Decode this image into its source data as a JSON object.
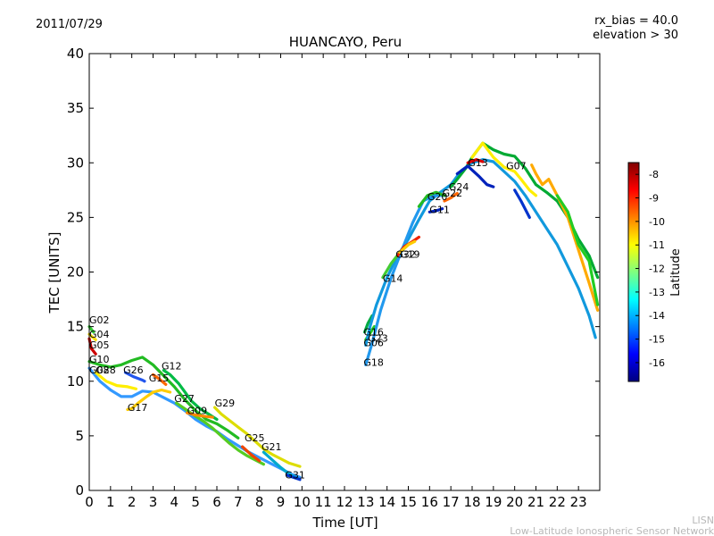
{
  "header": {
    "date": "2011/07/29",
    "rx_bias": "rx_bias = 40.0",
    "elevation": "elevation > 30"
  },
  "footer": {
    "line1": "LISN",
    "line2": "Low-Latitude Ionospheric Sensor Network"
  },
  "chart_data": {
    "type": "line",
    "title": "HUANCAYO, Peru",
    "xlabel": "Time [UT]",
    "ylabel": "TEC [UNITS]",
    "xlim": [
      0,
      24
    ],
    "ylim": [
      0,
      40
    ],
    "x_ticks": [
      "0",
      "1",
      "2",
      "3",
      "4",
      "5",
      "6",
      "7",
      "8",
      "9",
      "10",
      "11",
      "12",
      "13",
      "14",
      "15",
      "16",
      "17",
      "18",
      "19",
      "20",
      "21",
      "22",
      "23"
    ],
    "y_ticks": [
      "0",
      "5",
      "10",
      "15",
      "20",
      "25",
      "30",
      "35",
      "40"
    ],
    "colorbar": {
      "label": "Latitude",
      "range": [
        -16.8,
        -7.5
      ],
      "ticks": [
        "-8",
        "-9",
        "-10",
        "-11",
        "-12",
        "-13",
        "-14",
        "-15",
        "-16"
      ],
      "colors": [
        "#00007f",
        "#0000ff",
        "#007fff",
        "#00ffff",
        "#7fff7f",
        "#ffff00",
        "#ff7f00",
        "#ff0000",
        "#7f0000"
      ]
    },
    "series": [
      {
        "name": "G02",
        "label_xy": [
          0.0,
          15.3
        ],
        "x": [
          0.0,
          0.2
        ],
        "y": [
          15.0,
          14.5
        ],
        "color": "#33cc33"
      },
      {
        "name": "G04",
        "label_xy": [
          0.0,
          14.0
        ],
        "x": [
          0.0,
          0.3
        ],
        "y": [
          14.3,
          13.8
        ],
        "color": "#ffdd00"
      },
      {
        "name": "G05",
        "label_xy": [
          0.0,
          13.0
        ],
        "x": [
          0.0,
          0.1,
          0.3
        ],
        "y": [
          13.9,
          13.0,
          12.5
        ],
        "color": "#cc0000"
      },
      {
        "name": "G10",
        "label_xy": [
          0.0,
          11.7
        ],
        "x": [
          0.0,
          0.5,
          1.0,
          1.5,
          2.0,
          2.5,
          3.0,
          3.5,
          4.0,
          4.5,
          5.0,
          5.5,
          6.0,
          6.5,
          7.0
        ],
        "y": [
          11.8,
          11.5,
          11.3,
          11.5,
          11.9,
          12.2,
          11.5,
          10.5,
          9.5,
          8.3,
          7.3,
          6.5,
          6.1,
          5.5,
          4.8
        ],
        "color": "#22bb22"
      },
      {
        "name": "G08",
        "label_xy": [
          0.0,
          10.7
        ],
        "x": [
          0.0,
          0.5,
          1.0,
          1.5,
          2.0,
          2.5,
          3.0,
          3.5,
          4.0,
          4.5,
          5.0,
          5.5,
          6.0,
          6.5,
          7.0,
          7.5,
          8.0,
          8.5,
          9.0,
          9.5,
          9.9
        ],
        "y": [
          11.2,
          10.0,
          9.2,
          8.6,
          8.6,
          9.1,
          9.0,
          8.5,
          8.0,
          7.3,
          6.5,
          5.9,
          5.4,
          4.7,
          4.1,
          3.5,
          3.0,
          2.5,
          2.0,
          1.5,
          1.2
        ],
        "color": "#3399ff"
      },
      {
        "name": "G28",
        "label_xy": [
          0.3,
          10.7
        ],
        "x": [
          0.3,
          0.8,
          1.3,
          1.8,
          2.2
        ],
        "y": [
          10.8,
          10.0,
          9.6,
          9.5,
          9.3
        ],
        "color": "#ffee00"
      },
      {
        "name": "G26",
        "label_xy": [
          1.6,
          10.7
        ],
        "x": [
          1.7,
          2.1,
          2.5,
          2.6
        ],
        "y": [
          10.8,
          10.4,
          10.1,
          10.0
        ],
        "color": "#2255ee"
      },
      {
        "name": "G15",
        "label_xy": [
          2.8,
          10.0
        ],
        "x": [
          3.0,
          3.3,
          3.6
        ],
        "y": [
          10.6,
          10.2,
          9.7
        ],
        "color": "#ff6600"
      },
      {
        "name": "G12",
        "label_xy": [
          3.4,
          11.1
        ],
        "x": [
          3.5,
          3.8,
          4.2,
          4.5,
          4.8,
          5.2,
          5.6,
          6.0
        ],
        "y": [
          11.0,
          10.6,
          9.8,
          9.0,
          8.2,
          7.5,
          7.0,
          6.5
        ],
        "color": "#00bb44"
      },
      {
        "name": "G17",
        "label_xy": [
          1.8,
          7.3
        ],
        "x": [
          1.8,
          2.0,
          2.3,
          2.7,
          3.0,
          3.4,
          3.8
        ],
        "y": [
          7.4,
          7.5,
          8.0,
          8.6,
          9.0,
          9.2,
          9.0
        ],
        "color": "#ffcc00"
      },
      {
        "name": "G27",
        "label_xy": [
          4.0,
          8.1
        ],
        "x": [
          4.1,
          4.4,
          4.7,
          5.0,
          5.4,
          5.8,
          6.2,
          6.6,
          7.0,
          7.4,
          7.8,
          8.2
        ],
        "y": [
          8.0,
          7.6,
          7.2,
          6.8,
          6.3,
          5.7,
          5.0,
          4.3,
          3.7,
          3.2,
          2.8,
          2.4
        ],
        "color": "#55cc22"
      },
      {
        "name": "G09",
        "label_xy": [
          4.6,
          7.0
        ],
        "x": [
          4.6,
          5.0,
          5.4,
          5.8
        ],
        "y": [
          7.1,
          6.9,
          6.8,
          6.7
        ],
        "color": "#ff8800"
      },
      {
        "name": "G29",
        "label_xy": [
          5.9,
          7.7
        ],
        "x": [
          5.9,
          6.2,
          6.6,
          7.0,
          7.4,
          7.8,
          8.2,
          8.6,
          9.0,
          9.4,
          9.9
        ],
        "y": [
          7.6,
          7.0,
          6.4,
          5.8,
          5.2,
          4.5,
          3.8,
          3.3,
          2.9,
          2.5,
          2.2
        ],
        "color": "#dddd00"
      },
      {
        "name": "G25",
        "label_xy": [
          7.3,
          4.5
        ],
        "x": [
          7.2,
          7.6,
          8.0
        ],
        "y": [
          4.0,
          3.3,
          2.7
        ],
        "color": "#ee4400"
      },
      {
        "name": "G21",
        "label_xy": [
          8.1,
          3.7
        ],
        "x": [
          8.2,
          8.6,
          9.0,
          9.4,
          9.8
        ],
        "y": [
          3.5,
          2.8,
          2.1,
          1.5,
          1.1
        ],
        "color": "#00aacc"
      },
      {
        "name": "G31",
        "label_xy": [
          9.2,
          1.1
        ],
        "x": [
          9.3,
          9.6,
          9.9
        ],
        "y": [
          1.4,
          1.2,
          1.0
        ],
        "color": "#0033cc"
      },
      {
        "name": "G16",
        "label_xy": [
          12.9,
          14.2
        ],
        "x": [
          12.95,
          13.1,
          13.3
        ],
        "y": [
          14.5,
          15.3,
          16.0
        ],
        "color": "#00aa44"
      },
      {
        "name": "G23",
        "label_xy": [
          13.1,
          13.6
        ],
        "x": [
          13.0,
          13.2,
          13.4
        ],
        "y": [
          13.8,
          14.4,
          15.0
        ],
        "color": "#22cc22"
      },
      {
        "name": "G06",
        "label_xy": [
          12.9,
          13.2
        ],
        "x": [
          13.0,
          13.2,
          13.5,
          14.0,
          14.5,
          15.0,
          15.5,
          16.0,
          16.5,
          17.0,
          17.5,
          18.0,
          18.5,
          19.0,
          19.5,
          20.0,
          20.5,
          21.0,
          21.5,
          22.0,
          22.5,
          23.0,
          23.5,
          23.8
        ],
        "y": [
          13.3,
          15.0,
          17.0,
          19.5,
          21.5,
          23.0,
          24.8,
          26.5,
          27.3,
          28.0,
          29.3,
          30.0,
          30.3,
          30.1,
          29.2,
          28.3,
          27.0,
          25.5,
          24.0,
          22.5,
          20.5,
          18.5,
          16.0,
          14.0
        ],
        "color": "#1199dd"
      },
      {
        "name": "G18",
        "label_xy": [
          12.9,
          11.4
        ],
        "x": [
          13.0,
          13.3,
          13.7,
          14.2,
          14.7,
          15.2,
          15.7,
          16.2,
          16.7
        ],
        "y": [
          11.5,
          13.5,
          16.5,
          19.5,
          22.0,
          24.5,
          26.5,
          27.0,
          27.0
        ],
        "color": "#2299ee"
      },
      {
        "name": "G14",
        "label_xy": [
          13.8,
          19.1
        ],
        "x": [
          13.8,
          14.2,
          14.6,
          15.0
        ],
        "y": [
          19.5,
          20.8,
          21.8,
          22.5
        ],
        "color": "#44cc33"
      },
      {
        "name": "G32",
        "label_xy": [
          14.4,
          21.3
        ],
        "x": [
          14.5,
          14.8,
          15.2,
          15.5
        ],
        "y": [
          21.5,
          22.3,
          22.8,
          23.2
        ],
        "color": "#ee2200"
      },
      {
        "name": "G19",
        "label_xy": [
          14.6,
          21.3
        ],
        "x": [
          14.6,
          15.0,
          15.3
        ],
        "y": [
          21.8,
          22.5,
          22.8
        ],
        "color": "#ffcc00"
      },
      {
        "name": "G20",
        "label_xy": [
          15.9,
          26.6
        ],
        "x": [
          15.5,
          15.9,
          16.3,
          16.7
        ],
        "y": [
          26.0,
          27.0,
          27.3,
          27.0
        ],
        "color": "#22bb22"
      },
      {
        "name": "G11",
        "label_xy": [
          16.0,
          25.4
        ],
        "x": [
          16.0,
          16.3,
          16.6
        ],
        "y": [
          25.5,
          25.6,
          25.8
        ],
        "color": "#0022bb"
      },
      {
        "name": "G22",
        "label_xy": [
          16.6,
          26.9
        ],
        "x": [
          16.7,
          17.0,
          17.3
        ],
        "y": [
          26.5,
          26.8,
          27.2
        ],
        "color": "#ff6600"
      },
      {
        "name": "G24",
        "label_xy": [
          16.9,
          27.5
        ],
        "x": [
          17.0,
          17.3,
          17.7,
          18.0,
          18.5,
          19.0,
          19.5,
          20.0,
          20.5,
          21.0,
          21.5,
          22.0,
          22.5,
          23.0,
          23.5,
          23.9
        ],
        "y": [
          27.8,
          28.5,
          29.5,
          30.5,
          31.8,
          31.2,
          30.8,
          30.6,
          29.5,
          28.0,
          27.3,
          26.5,
          25.0,
          23.0,
          21.5,
          19.5
        ],
        "color": "#00aa33"
      },
      {
        "name": "G13",
        "label_xy": [
          17.8,
          29.7
        ],
        "x": [
          17.3,
          17.8,
          18.3,
          18.7,
          19.0
        ],
        "y": [
          29.0,
          29.7,
          28.8,
          28.0,
          27.8
        ],
        "color": "#0022bb"
      },
      {
        "name": "G07",
        "label_xy": [
          19.6,
          29.4
        ],
        "x": [
          18.0,
          18.5,
          19.0,
          19.5,
          20.0,
          20.3,
          20.7,
          21.0
        ],
        "y": [
          30.5,
          31.8,
          30.5,
          29.6,
          29.2,
          28.5,
          27.5,
          27.0
        ],
        "color": "#ffee00"
      },
      {
        "name": "",
        "label_xy": [
          0,
          0
        ],
        "x": [
          20.8,
          21.0,
          21.3,
          21.6,
          22.0,
          22.5,
          23.0,
          23.5,
          23.9
        ],
        "y": [
          29.8,
          29.0,
          28.0,
          28.5,
          27.0,
          25.0,
          22.0,
          19.0,
          16.5
        ],
        "color": "#ffaa00"
      },
      {
        "name": "",
        "label_xy": [
          0,
          0
        ],
        "x": [
          17.8,
          18.2,
          18.5
        ],
        "y": [
          30.0,
          30.3,
          30.1
        ],
        "color": "#dd0000"
      },
      {
        "name": "",
        "label_xy": [
          0,
          0
        ],
        "x": [
          22.0,
          22.5,
          23.0,
          23.5,
          23.9
        ],
        "y": [
          27.0,
          25.5,
          22.5,
          21.0,
          17.0
        ],
        "color": "#22cc22"
      },
      {
        "name": "",
        "label_xy": [
          0,
          0
        ],
        "x": [
          20.0,
          20.3,
          20.7
        ],
        "y": [
          27.5,
          26.5,
          25.0
        ],
        "color": "#0033cc"
      }
    ]
  }
}
